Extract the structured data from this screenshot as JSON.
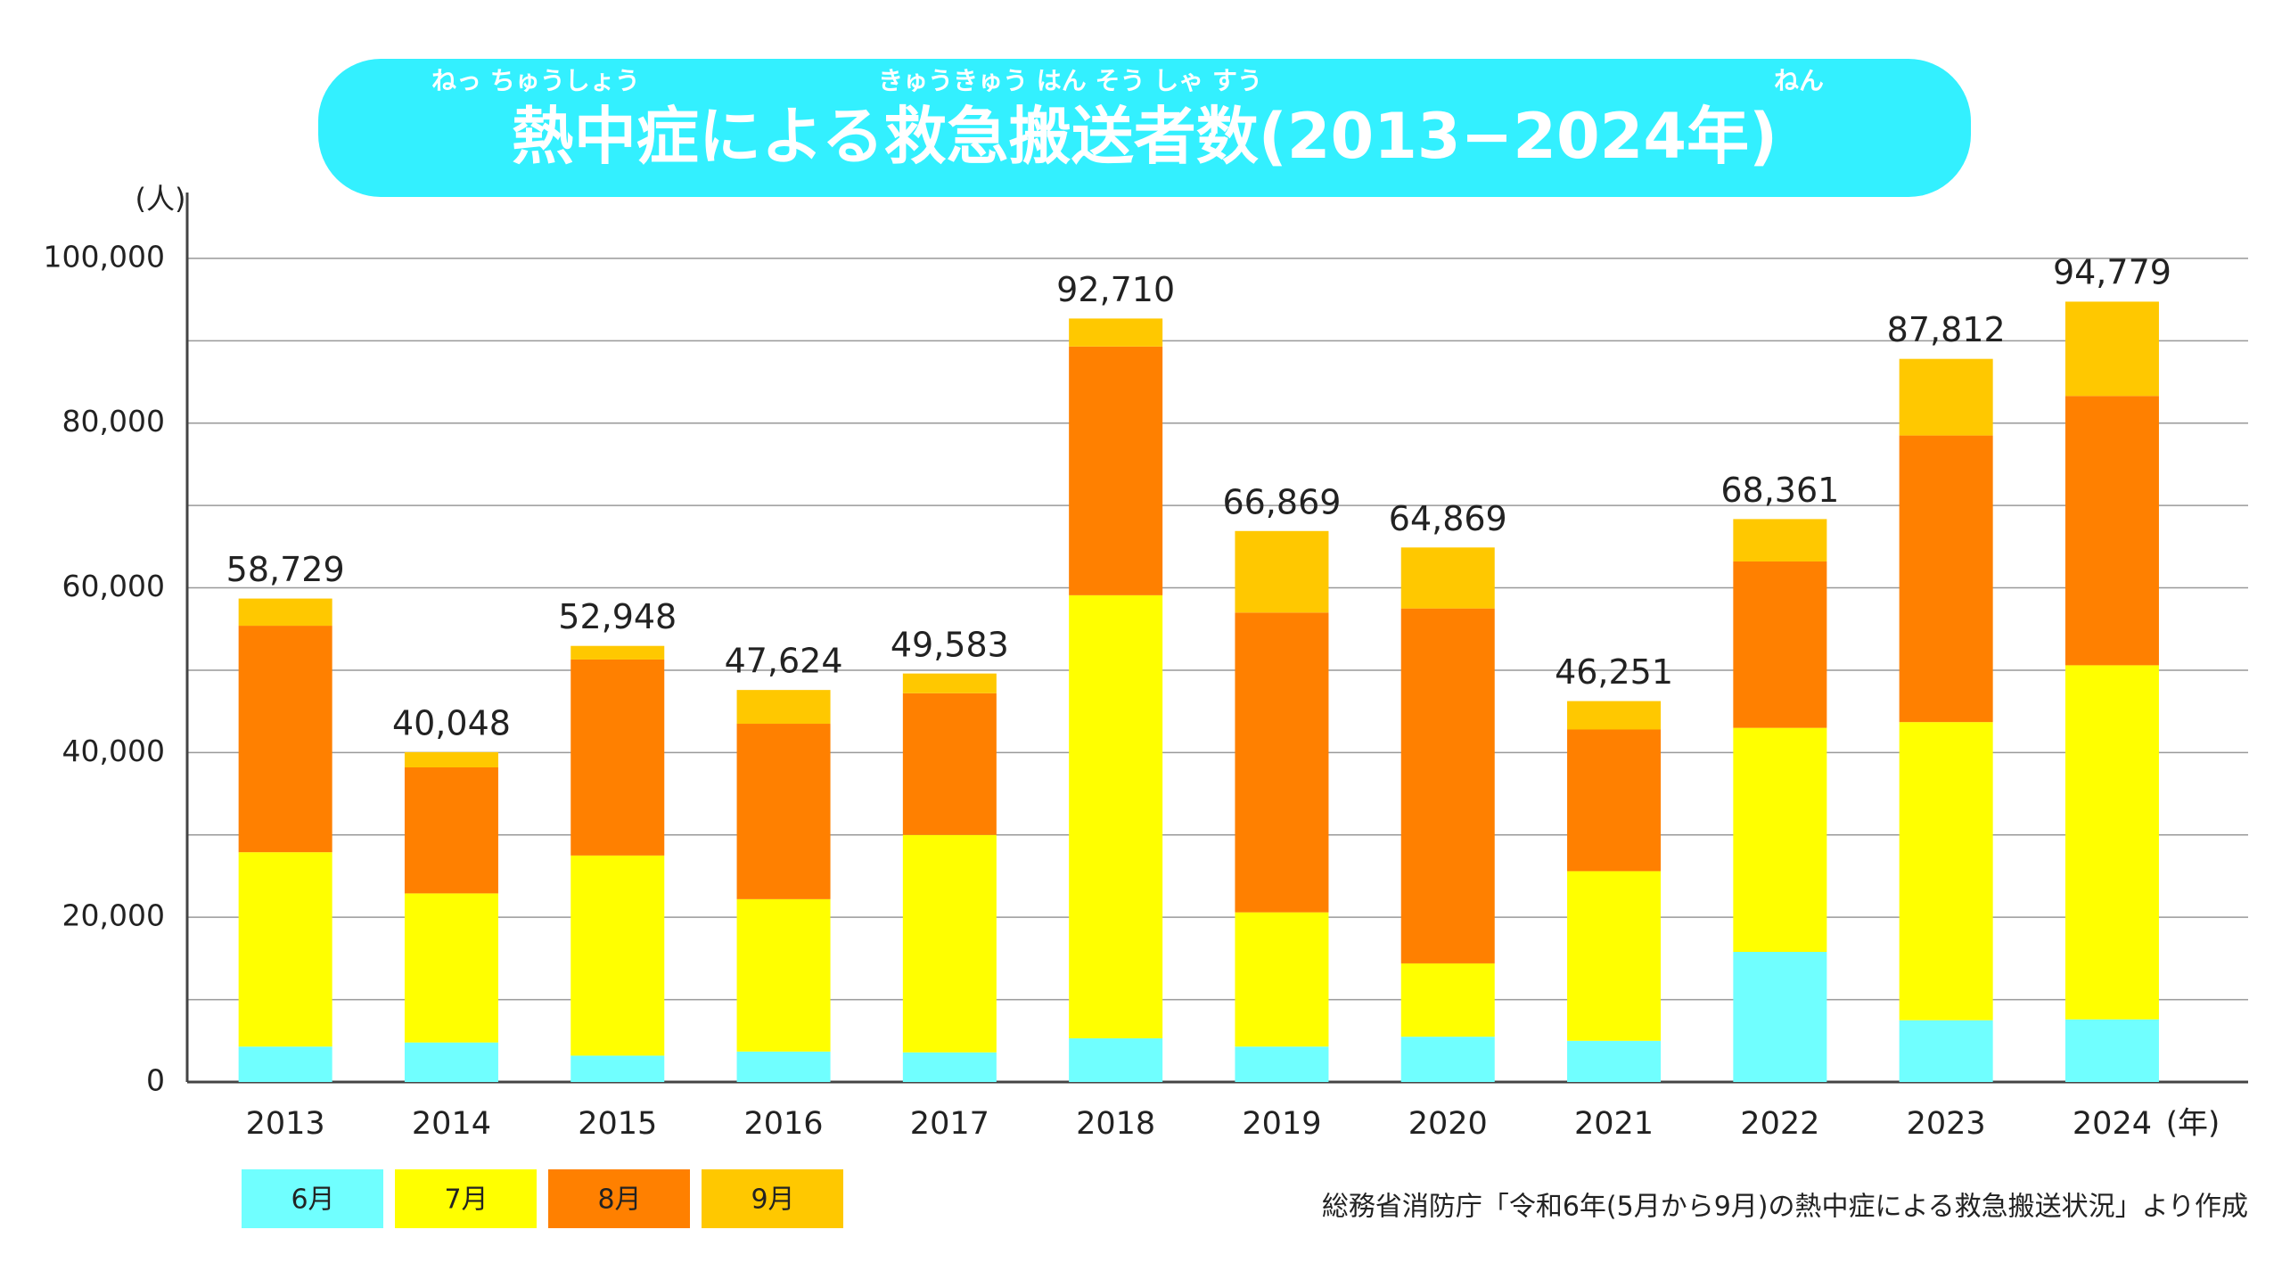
{
  "chart_data": {
    "type": "stacked_bar",
    "title": "熱中症による救急搬送者数(2013−2024年)",
    "title_ruby": [
      "ねっ ちゅうしょう",
      "きゅうきゅう はん そう しゃ すう",
      "ねん"
    ],
    "y_unit": "(人)",
    "x_unit": "(年)",
    "source": "総務省消防庁「令和6年(5月から9月)の熱中症による救急搬送状況」より作成",
    "categories": [
      "2013",
      "2014",
      "2015",
      "2016",
      "2017",
      "2018",
      "2019",
      "2020",
      "2021",
      "2022",
      "2023",
      "2024"
    ],
    "series": [
      {
        "name": "6月",
        "color": "#70ffff",
        "values": [
          4300,
          4800,
          3200,
          3700,
          3600,
          5300,
          4300,
          5500,
          5000,
          15800,
          7500,
          7600
        ]
      },
      {
        "name": "7月",
        "color": "#ffff00",
        "values": [
          23600,
          18100,
          24300,
          18500,
          26400,
          53800,
          16300,
          8900,
          20600,
          27200,
          36200,
          43000
        ]
      },
      {
        "name": "8月",
        "color": "#ff8000",
        "values": [
          27500,
          15300,
          23800,
          21300,
          17200,
          30200,
          36400,
          43100,
          17200,
          20200,
          34800,
          32700
        ]
      },
      {
        "name": "9月",
        "color": "#ffc800",
        "values": [
          3300,
          1850,
          1650,
          4100,
          2400,
          3400,
          9900,
          7400,
          3450,
          5150,
          9300,
          11450
        ]
      }
    ],
    "totals": [
      58729,
      40048,
      52948,
      47624,
      49583,
      92710,
      66869,
      64869,
      46251,
      68361,
      87812,
      94779
    ],
    "value_labels": [
      "58,729",
      "40,048",
      "52,948",
      "47,624",
      "49,583",
      "92,710",
      "66,869",
      "64,869",
      "46,251",
      "68,361",
      "87,812",
      "94,779"
    ],
    "ylim": [
      0,
      108000
    ],
    "yticks": [
      0,
      {
        "value": 20000,
        "label": "20,000"
      },
      {
        "value": 40000,
        "label": "40,000"
      },
      {
        "value": 60000,
        "label": "60,000"
      },
      {
        "value": 80000,
        "label": "80,000"
      },
      {
        "value": 100000,
        "label": "100,000"
      }
    ],
    "minor_yticks": [
      10000,
      30000,
      50000,
      70000,
      90000
    ],
    "grid": true
  }
}
